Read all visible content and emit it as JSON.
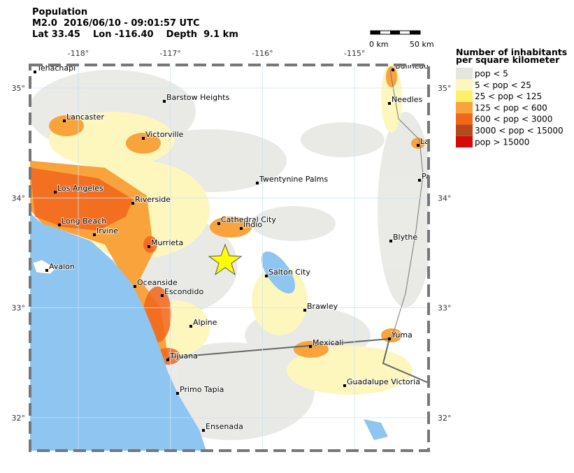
{
  "header": {
    "title": "Population",
    "lines": [
      "M2.0  2016/06/10 - 09:01:57 UTC",
      "Lat 33.45    Lon -116.40    Depth  9.1 km"
    ]
  },
  "scale_bar": {
    "start": "0 km",
    "end": "50 km"
  },
  "map": {
    "lon_ticks": [
      {
        "value": -118,
        "label": "-118°"
      },
      {
        "value": -117,
        "label": "-117°"
      },
      {
        "value": -116,
        "label": "-116°"
      },
      {
        "value": -115,
        "label": "-115°"
      }
    ],
    "lat_ticks": [
      {
        "value": 35,
        "label": "35°"
      },
      {
        "value": 34,
        "label": "34°"
      },
      {
        "value": 33,
        "label": "33°"
      },
      {
        "value": 32,
        "label": "32°"
      }
    ],
    "cities": [
      "Tehachapi",
      "Barstow Heights",
      "Lancaster",
      "Victorville",
      "Los Angeles",
      "Riverside",
      "Long Beach",
      "Irvine",
      "Murrieta",
      "Avalon",
      "Oceanside",
      "Escondido",
      "Alpine",
      "Tijuana",
      "Primo Tapia",
      "Ensenada",
      "Twentynine Palms",
      "Cathedral City",
      "Indio",
      "Salton City",
      "Brawley",
      "Mexicali",
      "Yuma",
      "Guadalupe Victoria",
      "Blythe",
      "Bullhead",
      "Needles",
      "La",
      "Pa"
    ]
  },
  "legend": {
    "title": [
      "Number of inhabitants",
      "per square kilometer"
    ],
    "items": [
      {
        "label": "pop < 5",
        "color": "#e4e4e0"
      },
      {
        "label": "5 < pop < 25",
        "color": "#fdf7bd"
      },
      {
        "label": "25 < pop < 125",
        "color": "#fdf06a"
      },
      {
        "label": "125 < pop < 600",
        "color": "#f9a33c"
      },
      {
        "label": "600 < pop < 3000",
        "color": "#f2661c"
      },
      {
        "label": "3000 < pop < 15000",
        "color": "#b6491a"
      },
      {
        "label": "pop > 15000",
        "color": "#d40b0b"
      }
    ]
  }
}
